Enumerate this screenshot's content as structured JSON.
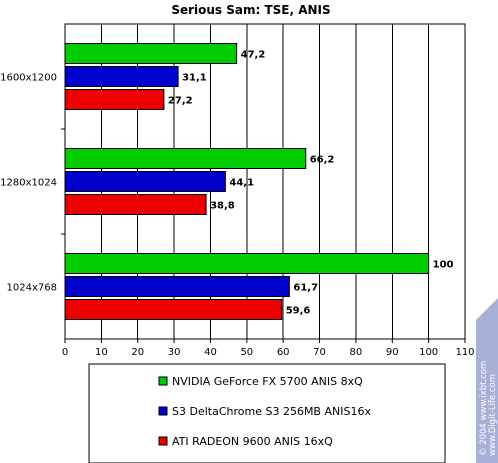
{
  "chart_data": {
    "type": "bar",
    "orientation": "horizontal",
    "title": "Serious Sam: TSE, ANIS",
    "categories": [
      "1600x1200",
      "1280x1024",
      "1024x768"
    ],
    "series": [
      {
        "name": "NVIDIA GeForce FX 5700 ANIS 8xQ",
        "color": "#00cc00",
        "values": [
          47.2,
          66.2,
          100
        ],
        "labels": [
          "47,2",
          "66,2",
          "100"
        ]
      },
      {
        "name": "S3 DeltaChrome S3 256MB ANIS16x",
        "color": "#0000cc",
        "values": [
          31.1,
          44.1,
          61.7
        ],
        "labels": [
          "31,1",
          "44,1",
          "61,7"
        ]
      },
      {
        "name": "ATI RADEON 9600 ANIS 16xQ",
        "color": "#ee0000",
        "values": [
          27.2,
          38.8,
          59.6
        ],
        "labels": [
          "27,2",
          "38,8",
          "59,6"
        ]
      }
    ],
    "xlim": [
      0,
      110
    ],
    "xticks": [
      0,
      10,
      20,
      30,
      40,
      50,
      60,
      70,
      80,
      90,
      100,
      110
    ],
    "grid": "vertical",
    "legend_position": "bottom"
  },
  "watermark": {
    "line1": "© 2004 www.ixbt.com",
    "line2": "www.Digit-Life.com",
    "color": "#a8b0d8"
  }
}
